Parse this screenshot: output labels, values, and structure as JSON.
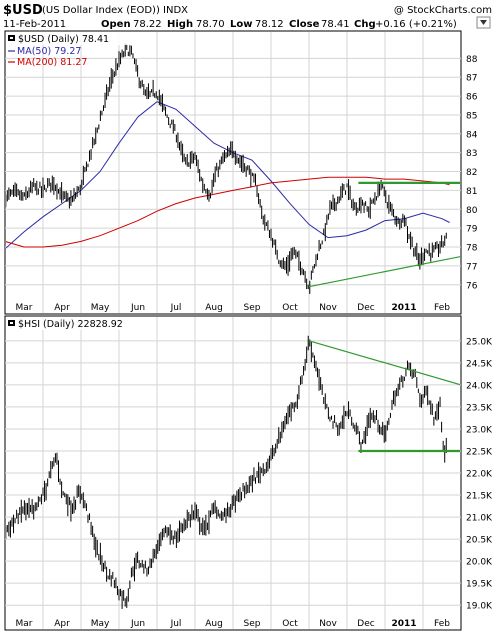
{
  "header": {
    "symbol": "$USD",
    "name": "(US Dollar Index (EOD)) INDX",
    "credit": "@ StockCharts.com",
    "date": "11-Feb-2011",
    "open_label": "Open",
    "open": "78.22",
    "high_label": "High",
    "high": "78.70",
    "low_label": "Low",
    "low": "78.12",
    "close_label": "Close",
    "close": "78.41",
    "chg_label": "Chg",
    "chg": "+0.16 (+0.21%)"
  },
  "colors": {
    "price": "#000000",
    "ma50": "#2a2aa8",
    "ma200": "#d00000",
    "trendline_green": "#2e9a2e",
    "grid": "#d4d4d4",
    "frame": "#000000"
  },
  "months": [
    "Mar",
    "Apr",
    "May",
    "Jun",
    "Jul",
    "Aug",
    "Sep",
    "Oct",
    "Nov",
    "Dec",
    "2011",
    "Feb"
  ],
  "chart_data": [
    {
      "type": "line",
      "title": "$USD (Daily) 78.41",
      "legend": [
        {
          "label": "MA(50) 79.27",
          "color": "#2a2aa8"
        },
        {
          "label": "MA(200) 81.27",
          "color": "#d00000"
        }
      ],
      "legend_placement": "top-left",
      "grid": true,
      "y_axis_side": "right",
      "yticks": [
        76,
        77,
        78,
        79,
        80,
        81,
        82,
        83,
        84,
        85,
        86,
        87,
        88
      ],
      "ylim": [
        75.3,
        88.6
      ],
      "xlim": [
        0,
        12
      ],
      "x_unit": "months since start of March 2010 (0 = Mar 1, 2010; 12 = Mar 1, 2011)",
      "series": [
        {
          "key": "price",
          "color": "#000000",
          "x": [
            0,
            0.25,
            0.5,
            0.75,
            1,
            1.25,
            1.5,
            1.75,
            2,
            2.2,
            2.4,
            2.6,
            2.8,
            3,
            3.2,
            3.35,
            3.5,
            3.7,
            4,
            4.25,
            4.5,
            4.75,
            5,
            5.2,
            5.4,
            5.55,
            5.75,
            6,
            6.2,
            6.4,
            6.6,
            6.8,
            7,
            7.2,
            7.4,
            7.6,
            7.8,
            8,
            8.2,
            8.4,
            8.55,
            8.75,
            9,
            9.2,
            9.4,
            9.55,
            9.75,
            9.9,
            10.1,
            10.35,
            10.5,
            10.6,
            10.75,
            10.9,
            11.05,
            11.25,
            11.45,
            11.65
          ],
          "y": [
            80.6,
            80.9,
            80.6,
            81.2,
            81.0,
            81.5,
            80.7,
            80.4,
            81.2,
            82.6,
            84.0,
            85.5,
            86.9,
            87.8,
            88.5,
            88.2,
            87.1,
            86.0,
            86.2,
            85.0,
            84.0,
            82.4,
            82.8,
            81.3,
            80.8,
            81.9,
            82.7,
            83.1,
            82.5,
            82.1,
            81.3,
            79.5,
            78.6,
            77.4,
            76.9,
            77.8,
            77.0,
            75.9,
            77.5,
            78.7,
            80.0,
            80.5,
            81.2,
            80.0,
            80.4,
            79.9,
            80.6,
            81.3,
            80.2,
            79.3,
            79.6,
            78.8,
            78.0,
            77.2,
            77.8,
            77.7,
            78.0,
            78.6
          ]
        },
        {
          "key": "ma50",
          "name": "MA(50)",
          "color": "#2a2aa8",
          "x": [
            0,
            0.5,
            1,
            1.5,
            2,
            2.5,
            3,
            3.5,
            4,
            4.5,
            5,
            5.5,
            6,
            6.5,
            7,
            7.5,
            8,
            8.5,
            9,
            9.5,
            10,
            10.5,
            11,
            11.5,
            11.7
          ],
          "y": [
            77.9,
            78.8,
            79.6,
            80.3,
            81.0,
            82.0,
            83.5,
            84.9,
            85.7,
            85.3,
            84.4,
            83.5,
            83.0,
            82.6,
            81.5,
            80.3,
            79.2,
            78.5,
            78.6,
            78.9,
            79.4,
            79.5,
            79.8,
            79.5,
            79.3
          ]
        },
        {
          "key": "ma200",
          "name": "MA(200)",
          "color": "#d00000",
          "x": [
            0,
            0.5,
            1,
            1.5,
            2,
            2.5,
            3,
            3.5,
            4,
            4.5,
            5,
            5.5,
            6,
            6.5,
            7,
            7.5,
            8,
            8.5,
            9,
            9.5,
            10,
            10.5,
            11,
            11.5,
            11.7
          ],
          "y": [
            78.3,
            78.0,
            78.0,
            78.1,
            78.3,
            78.6,
            79.0,
            79.4,
            79.9,
            80.3,
            80.6,
            80.8,
            81.0,
            81.2,
            81.4,
            81.5,
            81.6,
            81.7,
            81.7,
            81.7,
            81.6,
            81.6,
            81.5,
            81.4,
            81.3
          ]
        }
      ],
      "trendlines": [
        {
          "name": "resistance",
          "x": [
            9.3,
            12
          ],
          "y": [
            81.4,
            81.4
          ]
        },
        {
          "name": "support",
          "x": [
            8.0,
            12
          ],
          "y": [
            75.9,
            77.5
          ]
        }
      ]
    },
    {
      "type": "line",
      "title": "$HSI (Daily) 22828.92",
      "grid": true,
      "y_axis_side": "right",
      "yticks": [
        "19.0K",
        "19.5K",
        "20.0K",
        "20.5K",
        "21.0K",
        "21.5K",
        "22.0K",
        "22.5K",
        "23.0K",
        "23.5K",
        "24.0K",
        "24.5K",
        "25.0K"
      ],
      "ytick_values": [
        19.0,
        19.5,
        20.0,
        20.5,
        21.0,
        21.5,
        22.0,
        22.5,
        23.0,
        23.5,
        24.0,
        24.5,
        25.0
      ],
      "ylim": [
        18.8,
        25.2
      ],
      "y_unit": "thousands",
      "xlim": [
        0,
        12
      ],
      "series": [
        {
          "key": "price",
          "color": "#000000",
          "x": [
            0,
            0.25,
            0.5,
            0.75,
            1,
            1.2,
            1.35,
            1.5,
            1.75,
            2,
            2.2,
            2.4,
            2.55,
            2.7,
            2.85,
            3,
            3.2,
            3.35,
            3.5,
            3.75,
            4,
            4.25,
            4.5,
            4.75,
            5,
            5.25,
            5.5,
            5.75,
            6,
            6.3,
            6.6,
            6.9,
            7.1,
            7.3,
            7.5,
            7.7,
            7.85,
            8,
            8.2,
            8.4,
            8.6,
            8.8,
            9,
            9.2,
            9.4,
            9.6,
            9.8,
            10,
            10.2,
            10.4,
            10.6,
            10.8,
            10.95,
            11.1,
            11.3,
            11.45,
            11.55,
            11.65
          ],
          "y": [
            20.7,
            20.9,
            21.2,
            21.1,
            21.5,
            22.0,
            22.4,
            21.6,
            21.2,
            21.6,
            21.0,
            20.3,
            20.0,
            19.7,
            19.6,
            19.3,
            19.1,
            19.8,
            20.0,
            19.8,
            20.3,
            20.7,
            20.5,
            20.9,
            21.1,
            20.7,
            21.2,
            21.0,
            21.3,
            21.6,
            21.9,
            22.2,
            22.5,
            23.0,
            23.4,
            23.7,
            24.3,
            25.0,
            24.4,
            23.6,
            23.2,
            23.0,
            23.4,
            23.1,
            22.6,
            23.3,
            23.2,
            22.8,
            23.6,
            24.0,
            24.4,
            24.2,
            23.6,
            23.9,
            23.2,
            23.6,
            22.5,
            22.8
          ]
        }
      ],
      "trendlines": [
        {
          "name": "falling-resistance",
          "x": [
            8.0,
            12
          ],
          "y": [
            25.0,
            24.0
          ]
        },
        {
          "name": "support",
          "x": [
            9.3,
            12
          ],
          "y": [
            22.5,
            22.5
          ]
        }
      ]
    }
  ]
}
